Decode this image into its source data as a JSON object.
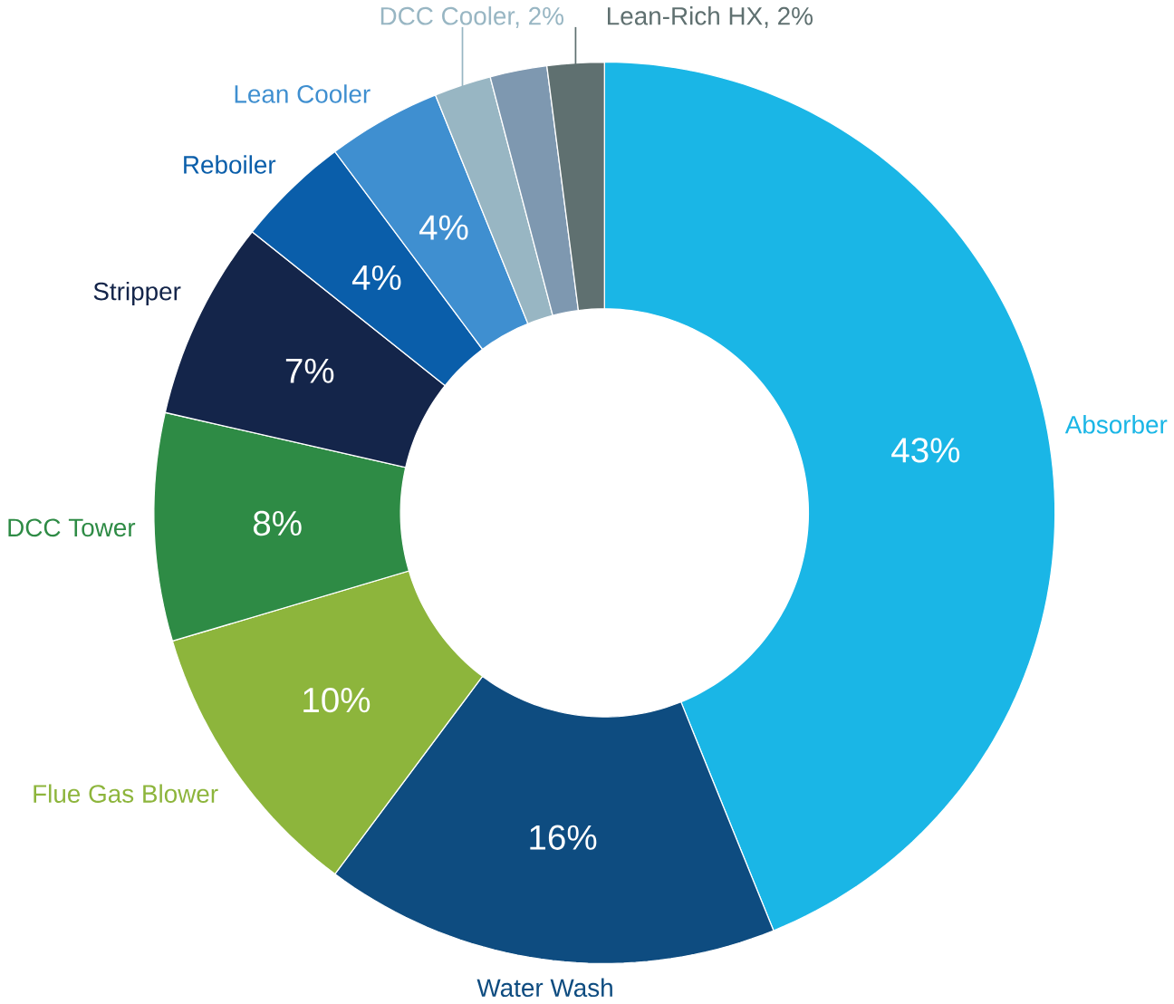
{
  "chart_data": {
    "type": "donut",
    "categories": [
      "Absorber",
      "Water Wash",
      "Flue Gas Blower",
      "DCC Tower",
      "Stripper",
      "Reboiler",
      "Lean Cooler",
      "DCC Cooler, 2%",
      null,
      "Lean-Rich HX, 2%"
    ],
    "values": [
      43,
      16,
      10,
      8,
      7,
      4,
      4,
      2,
      2,
      2
    ],
    "colors": [
      "#1ab6e6",
      "#0e4c80",
      "#8db53c",
      "#2e8b45",
      "#14254a",
      "#0a5eaa",
      "#3f8fd0",
      "#98b6c3",
      "#7e98b0",
      "#5f7070"
    ],
    "value_labels": [
      "43%",
      "16%",
      "10%",
      "8%",
      "7%",
      "4%",
      "4%",
      null,
      null,
      null
    ]
  }
}
